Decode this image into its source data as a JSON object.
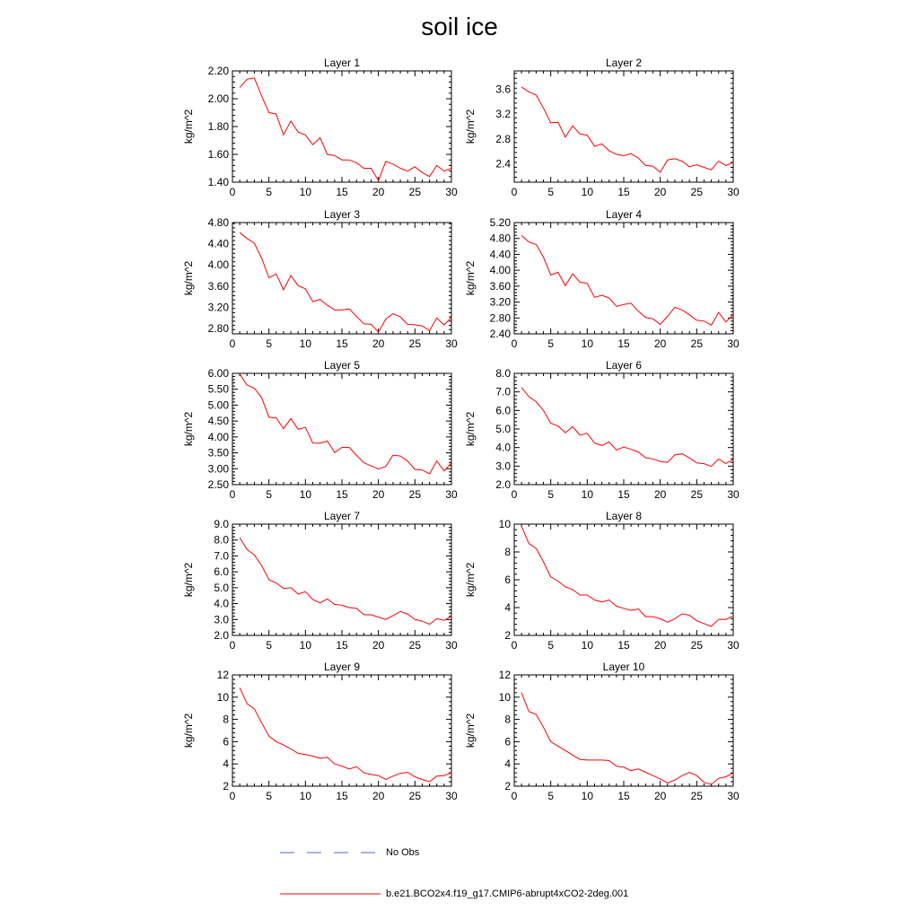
{
  "title": "soil ice",
  "legend": {
    "items": [
      {
        "label": "No Obs",
        "color": "#5566cc",
        "dash": true
      },
      {
        "label": "b.e21.BCO2x4.f19_g17.CMIP6-abrupt4xCO2-2deg.001",
        "color": "#ff0000",
        "dash": false
      }
    ]
  },
  "chart_data": [
    {
      "type": "line",
      "title": "Layer 1",
      "ylabel": "kg/m^2",
      "xlim": [
        0,
        30
      ],
      "xticks": [
        0,
        5,
        10,
        15,
        20,
        25,
        30
      ],
      "ylim": [
        1.4,
        2.2
      ],
      "yticks": [
        "1.40",
        "1.60",
        "1.80",
        "2.00",
        "2.20"
      ],
      "series": [
        {
          "color": "#ff0000",
          "x": [
            1,
            2,
            3,
            4,
            5,
            6,
            7,
            8,
            9,
            10,
            11,
            12,
            13,
            14,
            15,
            16,
            17,
            18,
            19,
            20,
            21,
            22,
            23,
            24,
            25,
            26,
            27,
            28,
            29,
            30
          ],
          "y": [
            2.08,
            2.14,
            2.15,
            2.02,
            1.9,
            1.89,
            1.74,
            1.84,
            1.76,
            1.74,
            1.67,
            1.72,
            1.6,
            1.59,
            1.56,
            1.56,
            1.54,
            1.5,
            1.5,
            1.41,
            1.55,
            1.53,
            1.5,
            1.48,
            1.51,
            1.47,
            1.44,
            1.52,
            1.48,
            1.5
          ]
        }
      ]
    },
    {
      "type": "line",
      "title": "Layer 2",
      "ylabel": "kg/m^2",
      "xlim": [
        0,
        30
      ],
      "xticks": [
        0,
        5,
        10,
        15,
        20,
        25,
        30
      ],
      "ylim": [
        2.1,
        3.9
      ],
      "yticks": [
        "2.4",
        "2.8",
        "3.2",
        "3.6"
      ],
      "series": [
        {
          "color": "#ff0000",
          "x": [
            1,
            2,
            3,
            4,
            5,
            6,
            7,
            8,
            9,
            10,
            11,
            12,
            13,
            14,
            15,
            16,
            17,
            18,
            19,
            20,
            21,
            22,
            23,
            24,
            25,
            26,
            27,
            28,
            29,
            30
          ],
          "y": [
            3.64,
            3.56,
            3.51,
            3.3,
            3.06,
            3.07,
            2.83,
            3.01,
            2.88,
            2.86,
            2.68,
            2.72,
            2.61,
            2.55,
            2.53,
            2.56,
            2.49,
            2.37,
            2.36,
            2.26,
            2.46,
            2.48,
            2.44,
            2.35,
            2.38,
            2.34,
            2.3,
            2.44,
            2.37,
            2.42
          ]
        }
      ]
    },
    {
      "type": "line",
      "title": "Layer 3",
      "ylabel": "kg/m^2",
      "xlim": [
        0,
        30
      ],
      "xticks": [
        0,
        5,
        10,
        15,
        20,
        25,
        30
      ],
      "ylim": [
        2.7,
        4.8
      ],
      "yticks": [
        "2.80",
        "3.20",
        "3.60",
        "4.00",
        "4.40",
        "4.80"
      ],
      "series": [
        {
          "color": "#ff0000",
          "x": [
            1,
            2,
            3,
            4,
            5,
            6,
            7,
            8,
            9,
            10,
            11,
            12,
            13,
            14,
            15,
            16,
            17,
            18,
            19,
            20,
            21,
            22,
            23,
            24,
            25,
            26,
            27,
            28,
            29,
            30
          ],
          "y": [
            4.61,
            4.5,
            4.41,
            4.13,
            3.76,
            3.83,
            3.53,
            3.8,
            3.61,
            3.55,
            3.31,
            3.35,
            3.24,
            3.15,
            3.15,
            3.17,
            3.03,
            2.89,
            2.88,
            2.73,
            2.98,
            3.08,
            3.02,
            2.88,
            2.87,
            2.85,
            2.76,
            3.0,
            2.87,
            3.01
          ]
        }
      ]
    },
    {
      "type": "line",
      "title": "Layer 4",
      "ylabel": "kg/m^2",
      "xlim": [
        0,
        30
      ],
      "xticks": [
        0,
        5,
        10,
        15,
        20,
        25,
        30
      ],
      "ylim": [
        2.4,
        5.2
      ],
      "yticks": [
        "2.40",
        "2.80",
        "3.20",
        "3.60",
        "4.00",
        "4.40",
        "4.80",
        "5.20"
      ],
      "series": [
        {
          "color": "#ff0000",
          "x": [
            1,
            2,
            3,
            4,
            5,
            6,
            7,
            8,
            9,
            10,
            11,
            12,
            13,
            14,
            15,
            16,
            17,
            18,
            19,
            20,
            21,
            22,
            23,
            24,
            25,
            26,
            27,
            28,
            29,
            30
          ],
          "y": [
            4.88,
            4.71,
            4.65,
            4.33,
            3.88,
            3.95,
            3.61,
            3.91,
            3.7,
            3.67,
            3.32,
            3.37,
            3.3,
            3.09,
            3.14,
            3.17,
            2.97,
            2.81,
            2.78,
            2.64,
            2.84,
            3.07,
            3.0,
            2.88,
            2.74,
            2.72,
            2.62,
            2.94,
            2.7,
            2.89
          ]
        }
      ]
    },
    {
      "type": "line",
      "title": "Layer 5",
      "ylabel": "kg/m^2",
      "xlim": [
        0,
        30
      ],
      "xticks": [
        0,
        5,
        10,
        15,
        20,
        25,
        30
      ],
      "ylim": [
        2.5,
        6.0
      ],
      "yticks": [
        "2.50",
        "3.00",
        "3.50",
        "4.00",
        "4.50",
        "5.00",
        "5.50",
        "6.00"
      ],
      "series": [
        {
          "color": "#ff0000",
          "x": [
            1,
            2,
            3,
            4,
            5,
            6,
            7,
            8,
            9,
            10,
            11,
            12,
            13,
            14,
            15,
            16,
            17,
            18,
            19,
            20,
            21,
            22,
            23,
            24,
            25,
            26,
            27,
            28,
            29,
            30
          ],
          "y": [
            5.98,
            5.63,
            5.53,
            5.24,
            4.62,
            4.6,
            4.26,
            4.58,
            4.24,
            4.3,
            3.81,
            3.8,
            3.87,
            3.51,
            3.67,
            3.67,
            3.42,
            3.19,
            3.09,
            2.99,
            3.07,
            3.43,
            3.4,
            3.24,
            2.98,
            2.96,
            2.84,
            3.24,
            2.93,
            3.19
          ]
        }
      ]
    },
    {
      "type": "line",
      "title": "Layer 6",
      "ylabel": "kg/m^2",
      "xlim": [
        0,
        30
      ],
      "xticks": [
        0,
        5,
        10,
        15,
        20,
        25,
        30
      ],
      "ylim": [
        2.0,
        8.0
      ],
      "yticks": [
        "2.0",
        "3.0",
        "4.0",
        "5.0",
        "6.0",
        "7.0",
        "8.0"
      ],
      "series": [
        {
          "color": "#ff0000",
          "x": [
            1,
            2,
            3,
            4,
            5,
            6,
            7,
            8,
            9,
            10,
            11,
            12,
            13,
            14,
            15,
            16,
            17,
            18,
            19,
            20,
            21,
            22,
            23,
            24,
            25,
            26,
            27,
            28,
            29,
            30
          ],
          "y": [
            7.24,
            6.74,
            6.47,
            6.0,
            5.31,
            5.16,
            4.8,
            5.12,
            4.67,
            4.77,
            4.24,
            4.11,
            4.3,
            3.87,
            4.03,
            3.9,
            3.76,
            3.45,
            3.39,
            3.25,
            3.2,
            3.6,
            3.66,
            3.44,
            3.17,
            3.13,
            2.98,
            3.38,
            3.14,
            3.36
          ]
        }
      ]
    },
    {
      "type": "line",
      "title": "Layer 7",
      "ylabel": "kg/m^2",
      "xlim": [
        0,
        30
      ],
      "xticks": [
        0,
        5,
        10,
        15,
        20,
        25,
        30
      ],
      "ylim": [
        2.0,
        9.0
      ],
      "yticks": [
        "2.0",
        "3.0",
        "4.0",
        "5.0",
        "6.0",
        "7.0",
        "8.0",
        "9.0"
      ],
      "series": [
        {
          "color": "#ff0000",
          "x": [
            1,
            2,
            3,
            4,
            5,
            6,
            7,
            8,
            9,
            10,
            11,
            12,
            13,
            14,
            15,
            16,
            17,
            18,
            19,
            20,
            21,
            22,
            23,
            24,
            25,
            26,
            27,
            28,
            29,
            30
          ],
          "y": [
            8.15,
            7.4,
            7.05,
            6.4,
            5.5,
            5.3,
            4.95,
            5.0,
            4.6,
            4.75,
            4.25,
            4.05,
            4.3,
            3.95,
            3.9,
            3.75,
            3.7,
            3.3,
            3.3,
            3.15,
            3.0,
            3.25,
            3.5,
            3.35,
            3.0,
            2.9,
            2.7,
            3.05,
            2.95,
            3.2
          ]
        }
      ]
    },
    {
      "type": "line",
      "title": "Layer 8",
      "ylabel": "kg/m^2",
      "xlim": [
        0,
        30
      ],
      "xticks": [
        0,
        5,
        10,
        15,
        20,
        25,
        30
      ],
      "ylim": [
        2,
        10
      ],
      "yticks": [
        "2",
        "4",
        "6",
        "8",
        "10"
      ],
      "series": [
        {
          "color": "#ff0000",
          "x": [
            1,
            2,
            3,
            4,
            5,
            6,
            7,
            8,
            9,
            10,
            11,
            12,
            13,
            14,
            15,
            16,
            17,
            18,
            19,
            20,
            21,
            22,
            23,
            24,
            25,
            26,
            27,
            28,
            29,
            30
          ],
          "y": [
            9.85,
            8.6,
            8.25,
            7.3,
            6.2,
            5.9,
            5.5,
            5.3,
            4.9,
            4.9,
            4.55,
            4.4,
            4.55,
            4.1,
            3.95,
            3.8,
            3.9,
            3.35,
            3.35,
            3.2,
            2.95,
            3.2,
            3.55,
            3.45,
            3.05,
            2.85,
            2.65,
            3.15,
            3.15,
            3.4
          ]
        }
      ]
    },
    {
      "type": "line",
      "title": "Layer 9",
      "ylabel": "kg/m^2",
      "xlim": [
        0,
        30
      ],
      "xticks": [
        0,
        5,
        10,
        15,
        20,
        25,
        30
      ],
      "ylim": [
        2,
        12
      ],
      "yticks": [
        "2",
        "4",
        "6",
        "8",
        "10",
        "12"
      ],
      "series": [
        {
          "color": "#ff0000",
          "x": [
            1,
            2,
            3,
            4,
            5,
            6,
            7,
            8,
            9,
            10,
            11,
            12,
            13,
            14,
            15,
            16,
            17,
            18,
            19,
            20,
            21,
            22,
            23,
            24,
            25,
            26,
            27,
            28,
            29,
            30
          ],
          "y": [
            10.85,
            9.4,
            8.95,
            7.7,
            6.5,
            6.0,
            5.7,
            5.35,
            4.95,
            4.85,
            4.7,
            4.5,
            4.6,
            4.0,
            3.8,
            3.55,
            3.75,
            3.2,
            3.05,
            2.95,
            2.6,
            2.9,
            3.15,
            3.25,
            2.85,
            2.6,
            2.4,
            2.9,
            2.95,
            3.2
          ]
        }
      ]
    },
    {
      "type": "line",
      "title": "Layer 10",
      "ylabel": "kg/m^2",
      "xlim": [
        0,
        30
      ],
      "xticks": [
        0,
        5,
        10,
        15,
        20,
        25,
        30
      ],
      "ylim": [
        2,
        12
      ],
      "yticks": [
        "2",
        "4",
        "6",
        "8",
        "10",
        "12"
      ],
      "series": [
        {
          "color": "#ff0000",
          "x": [
            1,
            2,
            3,
            4,
            5,
            6,
            7,
            8,
            9,
            10,
            11,
            12,
            13,
            14,
            15,
            16,
            17,
            18,
            19,
            20,
            21,
            22,
            23,
            24,
            25,
            26,
            27,
            28,
            29,
            30
          ],
          "y": [
            10.4,
            8.7,
            8.45,
            7.3,
            6.0,
            5.6,
            5.2,
            4.8,
            4.4,
            4.35,
            4.35,
            4.35,
            4.3,
            3.8,
            3.7,
            3.4,
            3.55,
            3.25,
            2.95,
            2.65,
            2.3,
            2.55,
            2.95,
            3.25,
            2.95,
            2.35,
            2.15,
            2.7,
            2.85,
            3.2
          ]
        }
      ]
    }
  ]
}
